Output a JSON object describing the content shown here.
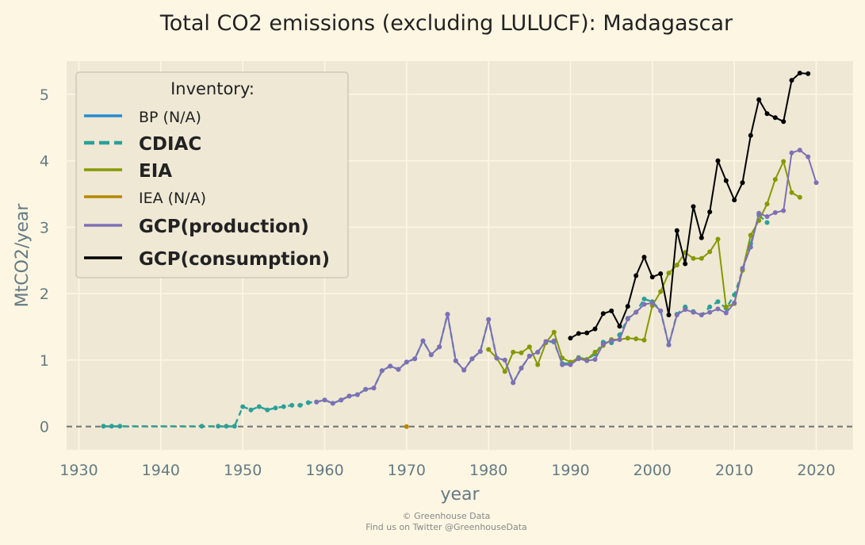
{
  "chart_data": {
    "type": "line",
    "title": "Total CO2 emissions (excluding LULUCF): Madagascar",
    "xlabel": "year",
    "ylabel": "MtCO2/year",
    "xlim": [
      1928.5,
      2024.5
    ],
    "ylim": [
      -0.35,
      5.5
    ],
    "xticks": [
      1930,
      1940,
      1950,
      1960,
      1970,
      1980,
      1990,
      2000,
      2010,
      2020
    ],
    "yticks": [
      0,
      1,
      2,
      3,
      4,
      5
    ],
    "grid": true,
    "legend": {
      "title": "Inventory:",
      "placement": "top-left",
      "entries": [
        {
          "label": "BP (N/A)",
          "bold": false,
          "color": "#268bd2",
          "dashed": false
        },
        {
          "label": "CDIAC",
          "bold": true,
          "color": "#2aa198",
          "dashed": true
        },
        {
          "label": "EIA",
          "bold": true,
          "color": "#859900",
          "dashed": false
        },
        {
          "label": "IEA (N/A)",
          "bold": false,
          "color": "#b58900",
          "dashed": false
        },
        {
          "label": "GCP(production)",
          "bold": true,
          "color": "#7f6fb5",
          "dashed": false
        },
        {
          "label": "GCP(consumption)",
          "bold": true,
          "color": "#000000",
          "dashed": false
        }
      ]
    },
    "series": [
      {
        "name": "CDIAC",
        "color": "#2aa198",
        "dashed": true,
        "x": [
          1933,
          1934,
          1935,
          1945,
          1947,
          1948,
          1949,
          1950,
          1951,
          1952,
          1953,
          1954,
          1955,
          1956,
          1957,
          1958,
          1959,
          1960,
          1961,
          1962,
          1963,
          1964,
          1965,
          1966,
          1967,
          1968,
          1969,
          1970,
          1971,
          1972,
          1973,
          1974,
          1975,
          1976,
          1977,
          1978,
          1979,
          1980,
          1981,
          1982,
          1983,
          1984,
          1985,
          1986,
          1987,
          1988,
          1989,
          1990,
          1991,
          1992,
          1993,
          1994,
          1995,
          1996,
          1997,
          1998,
          1999,
          2000,
          2001,
          2002,
          2003,
          2004,
          2005,
          2006,
          2007,
          2008,
          2009,
          2010,
          2011,
          2012,
          2013,
          2014
        ],
        "y": [
          0.005,
          0.005,
          0.005,
          0.005,
          0.005,
          0.005,
          0.005,
          0.3,
          0.25,
          0.3,
          0.25,
          0.28,
          0.3,
          0.32,
          0.32,
          0.36,
          0.37,
          0.4,
          0.35,
          0.4,
          0.46,
          0.48,
          0.56,
          0.58,
          0.84,
          0.91,
          0.86,
          0.97,
          1.02,
          1.29,
          1.08,
          1.2,
          1.69,
          0.99,
          0.85,
          1.02,
          1.13,
          1.61,
          1.03,
          1.0,
          0.66,
          0.88,
          1.06,
          1.12,
          1.28,
          1.27,
          0.95,
          0.95,
          1.04,
          1.01,
          1.09,
          1.27,
          1.26,
          1.38,
          1.63,
          1.72,
          1.92,
          1.88,
          1.74,
          1.23,
          1.69,
          1.8,
          1.73,
          1.68,
          1.8,
          1.88,
          1.78,
          1.98,
          2.35,
          2.75,
          3.18,
          3.07
        ]
      },
      {
        "name": "EIA",
        "color": "#859900",
        "dashed": false,
        "x": [
          1980,
          1981,
          1982,
          1983,
          1984,
          1985,
          1986,
          1987,
          1988,
          1989,
          1990,
          1991,
          1992,
          1993,
          1994,
          1995,
          1996,
          1997,
          1998,
          1999,
          2000,
          2001,
          2002,
          2003,
          2004,
          2005,
          2006,
          2007,
          2008,
          2009,
          2010,
          2011,
          2012,
          2013,
          2014,
          2015,
          2016,
          2017,
          2018
        ],
        "y": [
          1.16,
          1.03,
          0.83,
          1.12,
          1.11,
          1.2,
          0.93,
          1.26,
          1.42,
          1.03,
          0.97,
          1.03,
          1.01,
          1.12,
          1.22,
          1.31,
          1.31,
          1.33,
          1.32,
          1.3,
          1.82,
          2.03,
          2.31,
          2.43,
          2.62,
          2.53,
          2.53,
          2.63,
          2.82,
          1.8,
          1.85,
          2.35,
          2.88,
          3.1,
          3.35,
          3.72,
          3.99,
          3.52,
          3.45
        ]
      },
      {
        "name": "IEA (N/A)",
        "color": "#b58900",
        "dashed": false,
        "x": [
          1970
        ],
        "y": [
          0.0
        ]
      },
      {
        "name": "GCP(production)",
        "color": "#7f6fb5",
        "dashed": false,
        "x": [
          1959,
          1960,
          1961,
          1962,
          1963,
          1964,
          1965,
          1966,
          1967,
          1968,
          1969,
          1970,
          1971,
          1972,
          1973,
          1974,
          1975,
          1976,
          1977,
          1978,
          1979,
          1980,
          1981,
          1982,
          1983,
          1984,
          1985,
          1986,
          1987,
          1988,
          1989,
          1990,
          1991,
          1992,
          1993,
          1994,
          1995,
          1996,
          1997,
          1998,
          1999,
          2000,
          2001,
          2002,
          2003,
          2004,
          2005,
          2006,
          2007,
          2008,
          2009,
          2010,
          2011,
          2012,
          2013,
          2014,
          2015,
          2016,
          2017,
          2018,
          2019,
          2020
        ],
        "y": [
          0.37,
          0.4,
          0.35,
          0.4,
          0.46,
          0.48,
          0.56,
          0.58,
          0.84,
          0.91,
          0.86,
          0.97,
          1.02,
          1.29,
          1.08,
          1.2,
          1.69,
          0.99,
          0.85,
          1.02,
          1.13,
          1.61,
          1.03,
          1.0,
          0.66,
          0.88,
          1.06,
          1.12,
          1.28,
          1.29,
          0.93,
          0.93,
          1.02,
          0.99,
          1.01,
          1.24,
          1.29,
          1.31,
          1.62,
          1.72,
          1.84,
          1.86,
          1.74,
          1.23,
          1.68,
          1.76,
          1.72,
          1.68,
          1.72,
          1.77,
          1.71,
          1.86,
          2.38,
          2.7,
          3.21,
          3.16,
          3.22,
          3.25,
          4.12,
          4.16,
          4.06,
          3.67
        ]
      },
      {
        "name": "GCP(consumption)",
        "color": "#000000",
        "dashed": false,
        "x": [
          1990,
          1991,
          1992,
          1993,
          1994,
          1995,
          1996,
          1997,
          1998,
          1999,
          2000,
          2001,
          2002,
          2003,
          2004,
          2005,
          2006,
          2007,
          2008,
          2009,
          2010,
          2011,
          2012,
          2013,
          2014,
          2015,
          2016,
          2017,
          2018,
          2019
        ],
        "y": [
          1.33,
          1.4,
          1.41,
          1.47,
          1.7,
          1.74,
          1.51,
          1.81,
          2.27,
          2.55,
          2.25,
          2.3,
          1.68,
          2.95,
          2.45,
          3.31,
          2.84,
          3.23,
          4.0,
          3.7,
          3.41,
          3.67,
          4.38,
          4.92,
          4.71,
          4.65,
          4.59,
          5.21,
          5.32,
          5.31
        ]
      }
    ],
    "reference_line": {
      "y": 0,
      "color": "#777777",
      "dashed": true
    }
  },
  "footer": {
    "line1": "© Greenhouse Data",
    "line2": "Find us on Twitter @GreenhouseData"
  }
}
